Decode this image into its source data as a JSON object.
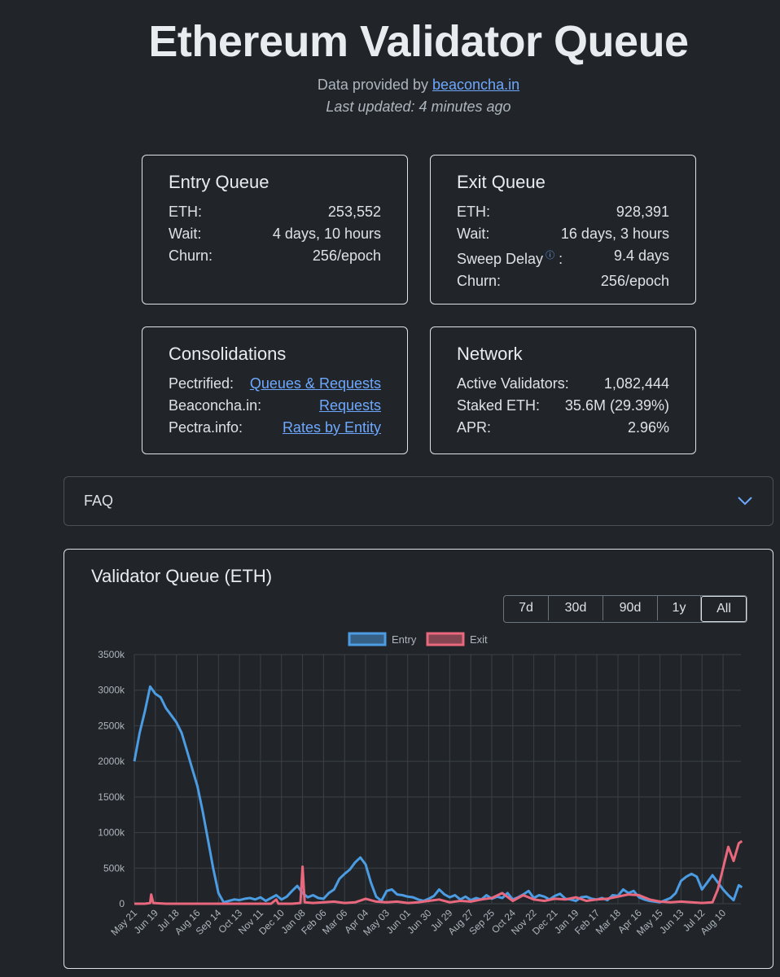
{
  "header": {
    "title": "Ethereum Validator Queue",
    "provided_prefix": "Data provided by ",
    "provided_link": "beaconcha.in",
    "last_updated": "Last updated: 4 minutes ago"
  },
  "entry_queue": {
    "title": "Entry Queue",
    "rows": [
      {
        "label": "ETH:",
        "value": "253,552"
      },
      {
        "label": "Wait:",
        "value": "4 days, 10 hours"
      },
      {
        "label": "Churn:",
        "value": "256/epoch"
      }
    ]
  },
  "exit_queue": {
    "title": "Exit Queue",
    "rows": [
      {
        "label": "ETH:",
        "value": "928,391"
      },
      {
        "label": "Wait:",
        "value": "16 days, 3 hours"
      },
      {
        "label": "Sweep Delay",
        "suffix": ":",
        "value": "9.4 days"
      },
      {
        "label": "Churn:",
        "value": "256/epoch"
      }
    ],
    "info_icon": "info-circle-icon"
  },
  "consolidations": {
    "title": "Consolidations",
    "rows": [
      {
        "label": "Pectrified:",
        "link": "Queues & Requests"
      },
      {
        "label": "Beaconcha.in:",
        "link": "Requests"
      },
      {
        "label": "Pectra.info:",
        "link": "Rates by Entity"
      }
    ]
  },
  "network": {
    "title": "Network",
    "rows": [
      {
        "label": "Active Validators:",
        "value": "1,082,444"
      },
      {
        "label": "Staked ETH:",
        "value": "35.6M (29.39%)"
      },
      {
        "label": "APR:",
        "value": "2.96%"
      }
    ]
  },
  "faq": {
    "label": "FAQ",
    "icon": "chevron-down-icon"
  },
  "chart_panel": {
    "title": "Validator Queue (ETH)",
    "ranges": [
      "7d",
      "30d",
      "90d",
      "1y",
      "All"
    ],
    "active_range": "All"
  },
  "colors": {
    "background": "#212529",
    "entry": "#4b9ce2",
    "exit": "#e9687d",
    "link": "#6ea8fe"
  },
  "chart_data": {
    "type": "line",
    "title": "",
    "xlabel": "",
    "ylabel": "",
    "ylim": [
      0,
      3500000
    ],
    "y_ticks": [
      "0",
      "500k",
      "1000k",
      "1500k",
      "2000k",
      "2500k",
      "3000k",
      "3500k"
    ],
    "x_ticks": [
      "May 21",
      "Jun 19",
      "Jul 18",
      "Aug 16",
      "Sep 14",
      "Oct 13",
      "Nov 11",
      "Dec 10",
      "Jan 08",
      "Feb 06",
      "Mar 06",
      "Apr 04",
      "May 03",
      "Jun 01",
      "Jun 30",
      "Jul 29",
      "Aug 27",
      "Sep 25",
      "Oct 24",
      "Nov 22",
      "Dec 21",
      "Jan 19",
      "Feb 17",
      "Mar 18",
      "Apr 16",
      "May 15",
      "Jun 13",
      "Jul 12",
      "Aug 10"
    ],
    "grid": true,
    "legend": "top-center",
    "series": [
      {
        "name": "Entry",
        "color": "#4b9ce2",
        "values": [
          [
            0,
            2000000
          ],
          [
            0.5,
            2400000
          ],
          [
            1,
            2700000
          ],
          [
            1.5,
            3050000
          ],
          [
            2,
            2950000
          ],
          [
            2.5,
            2900000
          ],
          [
            3,
            2750000
          ],
          [
            3.5,
            2650000
          ],
          [
            4,
            2550000
          ],
          [
            4.5,
            2400000
          ],
          [
            5,
            2150000
          ],
          [
            5.5,
            1900000
          ],
          [
            6,
            1650000
          ],
          [
            6.5,
            1300000
          ],
          [
            7,
            900000
          ],
          [
            7.5,
            500000
          ],
          [
            8,
            150000
          ],
          [
            8.5,
            20000
          ],
          [
            9,
            40000
          ],
          [
            9.5,
            60000
          ],
          [
            10,
            50000
          ],
          [
            10.5,
            70000
          ],
          [
            11,
            80000
          ],
          [
            11.5,
            60000
          ],
          [
            12,
            90000
          ],
          [
            12.5,
            40000
          ],
          [
            13,
            80000
          ],
          [
            13.5,
            120000
          ],
          [
            14,
            60000
          ],
          [
            14.5,
            100000
          ],
          [
            15,
            180000
          ],
          [
            15.5,
            250000
          ],
          [
            16,
            150000
          ],
          [
            16.5,
            90000
          ],
          [
            17,
            120000
          ],
          [
            17.5,
            80000
          ],
          [
            18,
            70000
          ],
          [
            18.5,
            150000
          ],
          [
            19,
            200000
          ],
          [
            19.5,
            350000
          ],
          [
            20,
            420000
          ],
          [
            20.5,
            480000
          ],
          [
            21,
            580000
          ],
          [
            21.5,
            650000
          ],
          [
            22,
            550000
          ],
          [
            22.5,
            300000
          ],
          [
            23,
            100000
          ],
          [
            23.5,
            40000
          ],
          [
            24,
            180000
          ],
          [
            24.5,
            200000
          ],
          [
            25,
            130000
          ],
          [
            25.5,
            120000
          ],
          [
            26,
            100000
          ],
          [
            26.5,
            90000
          ],
          [
            27,
            60000
          ],
          [
            27.5,
            40000
          ],
          [
            28,
            70000
          ],
          [
            28.5,
            110000
          ],
          [
            29,
            200000
          ],
          [
            29.5,
            130000
          ],
          [
            30,
            90000
          ],
          [
            30.5,
            120000
          ],
          [
            31,
            60000
          ],
          [
            31.5,
            100000
          ],
          [
            32,
            50000
          ],
          [
            32.5,
            80000
          ],
          [
            33,
            60000
          ],
          [
            33.5,
            120000
          ],
          [
            34,
            70000
          ],
          [
            34.5,
            100000
          ],
          [
            35,
            80000
          ],
          [
            35.5,
            150000
          ],
          [
            36,
            60000
          ],
          [
            36.5,
            90000
          ],
          [
            37,
            130000
          ],
          [
            37.5,
            180000
          ],
          [
            38,
            80000
          ],
          [
            38.5,
            120000
          ],
          [
            39,
            100000
          ],
          [
            39.5,
            60000
          ],
          [
            40,
            110000
          ],
          [
            40.5,
            140000
          ],
          [
            41,
            70000
          ],
          [
            41.5,
            60000
          ],
          [
            42,
            40000
          ],
          [
            42.5,
            90000
          ],
          [
            43,
            100000
          ],
          [
            43.5,
            70000
          ],
          [
            44,
            60000
          ],
          [
            44.5,
            80000
          ],
          [
            45,
            50000
          ],
          [
            45.5,
            120000
          ],
          [
            46,
            110000
          ],
          [
            46.5,
            200000
          ],
          [
            47,
            150000
          ],
          [
            47.5,
            180000
          ],
          [
            48,
            90000
          ],
          [
            48.5,
            60000
          ],
          [
            49,
            40000
          ],
          [
            49.5,
            30000
          ],
          [
            50,
            20000
          ],
          [
            50.5,
            50000
          ],
          [
            51,
            80000
          ],
          [
            51.5,
            150000
          ],
          [
            52,
            320000
          ],
          [
            52.5,
            380000
          ],
          [
            53,
            420000
          ],
          [
            53.5,
            380000
          ],
          [
            54,
            200000
          ],
          [
            54.5,
            300000
          ],
          [
            55,
            400000
          ],
          [
            55.5,
            300000
          ],
          [
            56,
            200000
          ],
          [
            56.5,
            120000
          ],
          [
            57,
            50000
          ],
          [
            57.5,
            260000
          ],
          [
            57.8,
            230000
          ]
        ]
      },
      {
        "name": "Exit",
        "color": "#e9687d",
        "values": [
          [
            0,
            0
          ],
          [
            1,
            0
          ],
          [
            1.5,
            10000
          ],
          [
            1.6,
            130000
          ],
          [
            1.8,
            10000
          ],
          [
            3,
            0
          ],
          [
            6,
            0
          ],
          [
            9,
            0
          ],
          [
            12,
            0
          ],
          [
            13,
            0
          ],
          [
            13.5,
            60000
          ],
          [
            13.7,
            0
          ],
          [
            15,
            0
          ],
          [
            15.8,
            10000
          ],
          [
            16,
            520000
          ],
          [
            16.2,
            20000
          ],
          [
            17,
            10000
          ],
          [
            18,
            20000
          ],
          [
            19,
            30000
          ],
          [
            20,
            10000
          ],
          [
            21,
            20000
          ],
          [
            22,
            70000
          ],
          [
            23,
            30000
          ],
          [
            24,
            20000
          ],
          [
            25,
            30000
          ],
          [
            26,
            10000
          ],
          [
            27,
            20000
          ],
          [
            28,
            40000
          ],
          [
            29,
            60000
          ],
          [
            30,
            20000
          ],
          [
            31,
            40000
          ],
          [
            32,
            30000
          ],
          [
            33,
            60000
          ],
          [
            34,
            80000
          ],
          [
            35,
            150000
          ],
          [
            36,
            40000
          ],
          [
            37,
            120000
          ],
          [
            38,
            60000
          ],
          [
            39,
            40000
          ],
          [
            40,
            70000
          ],
          [
            41,
            60000
          ],
          [
            42,
            90000
          ],
          [
            43,
            40000
          ],
          [
            44,
            60000
          ],
          [
            45,
            70000
          ],
          [
            46,
            100000
          ],
          [
            47,
            130000
          ],
          [
            48,
            120000
          ],
          [
            49,
            60000
          ],
          [
            50,
            30000
          ],
          [
            51,
            20000
          ],
          [
            52,
            30000
          ],
          [
            53,
            20000
          ],
          [
            54,
            10000
          ],
          [
            55,
            20000
          ],
          [
            55.5,
            200000
          ],
          [
            56,
            500000
          ],
          [
            56.5,
            800000
          ],
          [
            57,
            600000
          ],
          [
            57.5,
            850000
          ],
          [
            57.8,
            880000
          ]
        ]
      }
    ]
  }
}
